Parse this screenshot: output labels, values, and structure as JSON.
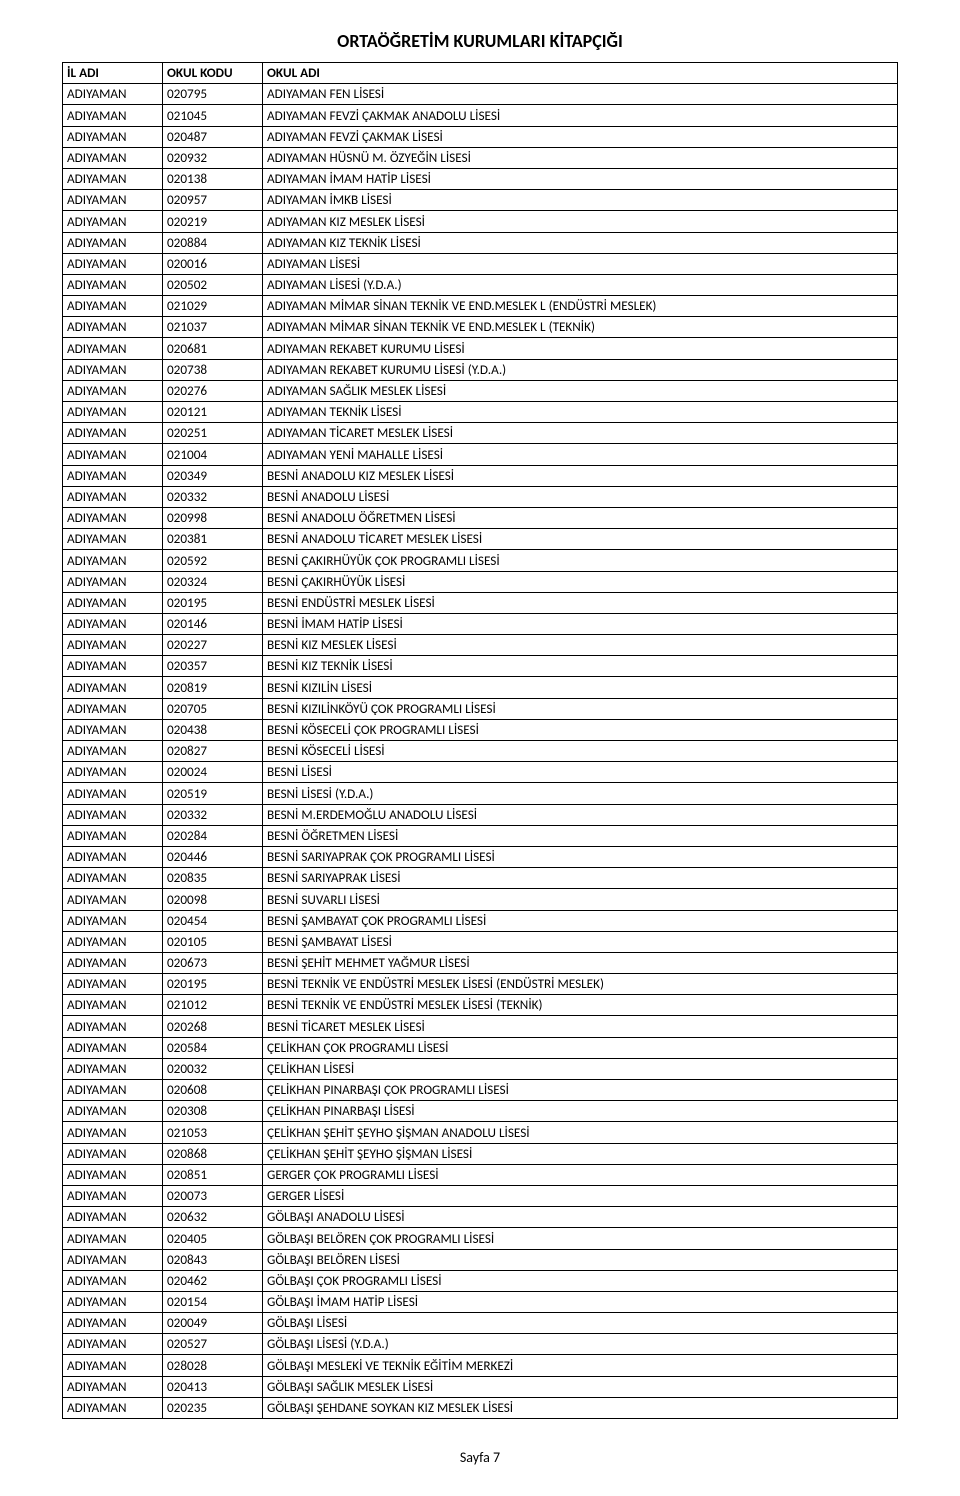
{
  "title": "ORTAÖĞRETİM KURUMLARI KİTAPÇIĞI",
  "headers": {
    "c1": "İL ADI",
    "c2": "OKUL KODU",
    "c3": "OKUL ADI"
  },
  "footer": "Sayfa 7",
  "rows": [
    [
      "ADIYAMAN",
      "020795",
      "ADIYAMAN FEN LİSESİ"
    ],
    [
      "ADIYAMAN",
      "021045",
      "ADIYAMAN FEVZİ ÇAKMAK ANADOLU LİSESİ"
    ],
    [
      "ADIYAMAN",
      "020487",
      "ADIYAMAN FEVZİ ÇAKMAK LİSESİ"
    ],
    [
      "ADIYAMAN",
      "020932",
      "ADIYAMAN HÜSNÜ M. ÖZYEĞİN LİSESİ"
    ],
    [
      "ADIYAMAN",
      "020138",
      "ADIYAMAN İMAM HATİP LİSESİ"
    ],
    [
      "ADIYAMAN",
      "020957",
      "ADIYAMAN İMKB LİSESİ"
    ],
    [
      "ADIYAMAN",
      "020219",
      "ADIYAMAN KIZ MESLEK LİSESİ"
    ],
    [
      "ADIYAMAN",
      "020884",
      "ADIYAMAN KIZ TEKNİK LİSESİ"
    ],
    [
      "ADIYAMAN",
      "020016",
      "ADIYAMAN LİSESİ"
    ],
    [
      "ADIYAMAN",
      "020502",
      "ADIYAMAN LİSESİ (Y.D.A.)"
    ],
    [
      "ADIYAMAN",
      "021029",
      "ADIYAMAN MİMAR SİNAN TEKNİK VE END.MESLEK L (ENDÜSTRİ MESLEK)"
    ],
    [
      "ADIYAMAN",
      "021037",
      "ADIYAMAN MİMAR SİNAN TEKNİK VE END.MESLEK L (TEKNİK)"
    ],
    [
      "ADIYAMAN",
      "020681",
      "ADIYAMAN REKABET KURUMU LİSESİ"
    ],
    [
      "ADIYAMAN",
      "020738",
      "ADIYAMAN REKABET KURUMU LİSESİ (Y.D.A.)"
    ],
    [
      "ADIYAMAN",
      "020276",
      "ADIYAMAN SAĞLIK MESLEK LİSESİ"
    ],
    [
      "ADIYAMAN",
      "020121",
      "ADIYAMAN TEKNİK LİSESİ"
    ],
    [
      "ADIYAMAN",
      "020251",
      "ADIYAMAN TİCARET MESLEK LİSESİ"
    ],
    [
      "ADIYAMAN",
      "021004",
      "ADIYAMAN YENİ MAHALLE LİSESİ"
    ],
    [
      "ADIYAMAN",
      "020349",
      "BESNİ ANADOLU KIZ MESLEK LİSESİ"
    ],
    [
      "ADIYAMAN",
      "020332",
      "BESNİ ANADOLU LİSESİ"
    ],
    [
      "ADIYAMAN",
      "020998",
      "BESNİ ANADOLU ÖĞRETMEN LİSESİ"
    ],
    [
      "ADIYAMAN",
      "020381",
      "BESNİ ANADOLU TİCARET MESLEK LİSESİ"
    ],
    [
      "ADIYAMAN",
      "020592",
      "BESNİ ÇAKIRHÜYÜK ÇOK PROGRAMLI LİSESİ"
    ],
    [
      "ADIYAMAN",
      "020324",
      "BESNİ ÇAKIRHÜYÜK LİSESİ"
    ],
    [
      "ADIYAMAN",
      "020195",
      "BESNİ ENDÜSTRİ MESLEK LİSESİ"
    ],
    [
      "ADIYAMAN",
      "020146",
      "BESNİ İMAM HATİP LİSESİ"
    ],
    [
      "ADIYAMAN",
      "020227",
      "BESNİ KIZ MESLEK LİSESİ"
    ],
    [
      "ADIYAMAN",
      "020357",
      "BESNİ KIZ TEKNİK LİSESİ"
    ],
    [
      "ADIYAMAN",
      "020819",
      "BESNİ KIZILİN LİSESİ"
    ],
    [
      "ADIYAMAN",
      "020705",
      "BESNİ KIZILİNKÖYÜ ÇOK PROGRAMLI LİSESİ"
    ],
    [
      "ADIYAMAN",
      "020438",
      "BESNİ KÖSECELİ ÇOK PROGRAMLI LİSESİ"
    ],
    [
      "ADIYAMAN",
      "020827",
      "BESNİ KÖSECELİ LİSESİ"
    ],
    [
      "ADIYAMAN",
      "020024",
      "BESNİ LİSESİ"
    ],
    [
      "ADIYAMAN",
      "020519",
      "BESNİ LİSESİ (Y.D.A.)"
    ],
    [
      "ADIYAMAN",
      "020332",
      "BESNİ M.ERDEMOĞLU ANADOLU LİSESİ"
    ],
    [
      "ADIYAMAN",
      "020284",
      "BESNİ ÖĞRETMEN LİSESİ"
    ],
    [
      "ADIYAMAN",
      "020446",
      "BESNİ SARIYAPRAK ÇOK PROGRAMLI LİSESİ"
    ],
    [
      "ADIYAMAN",
      "020835",
      "BESNİ SARIYAPRAK LİSESİ"
    ],
    [
      "ADIYAMAN",
      "020098",
      "BESNİ SUVARLI LİSESİ"
    ],
    [
      "ADIYAMAN",
      "020454",
      "BESNİ ŞAMBAYAT ÇOK PROGRAMLI LİSESİ"
    ],
    [
      "ADIYAMAN",
      "020105",
      "BESNİ ŞAMBAYAT LİSESİ"
    ],
    [
      "ADIYAMAN",
      "020673",
      "BESNİ ŞEHİT MEHMET YAĞMUR LİSESİ"
    ],
    [
      "ADIYAMAN",
      "020195",
      "BESNİ TEKNİK VE ENDÜSTRİ MESLEK LİSESİ (ENDÜSTRİ MESLEK)"
    ],
    [
      "ADIYAMAN",
      "021012",
      "BESNİ TEKNİK VE ENDÜSTRİ MESLEK LİSESİ (TEKNİK)"
    ],
    [
      "ADIYAMAN",
      "020268",
      "BESNİ TİCARET MESLEK LİSESİ"
    ],
    [
      "ADIYAMAN",
      "020584",
      "ÇELİKHAN ÇOK PROGRAMLI LİSESİ"
    ],
    [
      "ADIYAMAN",
      "020032",
      "ÇELİKHAN LİSESİ"
    ],
    [
      "ADIYAMAN",
      "020608",
      "ÇELİKHAN PINARBAŞI ÇOK PROGRAMLI LİSESİ"
    ],
    [
      "ADIYAMAN",
      "020308",
      "ÇELİKHAN PINARBAŞI LİSESİ"
    ],
    [
      "ADIYAMAN",
      "021053",
      "ÇELİKHAN ŞEHİT ŞEYHO ŞİŞMAN ANADOLU LİSESİ"
    ],
    [
      "ADIYAMAN",
      "020868",
      "ÇELİKHAN ŞEHİT ŞEYHO ŞİŞMAN LİSESİ"
    ],
    [
      "ADIYAMAN",
      "020851",
      "GERGER ÇOK PROGRAMLI LİSESİ"
    ],
    [
      "ADIYAMAN",
      "020073",
      "GERGER LİSESİ"
    ],
    [
      "ADIYAMAN",
      "020632",
      "GÖLBAŞI ANADOLU LİSESİ"
    ],
    [
      "ADIYAMAN",
      "020405",
      "GÖLBAŞI BELÖREN ÇOK PROGRAMLI LİSESİ"
    ],
    [
      "ADIYAMAN",
      "020843",
      "GÖLBAŞI BELÖREN LİSESİ"
    ],
    [
      "ADIYAMAN",
      "020462",
      "GÖLBAŞI ÇOK PROGRAMLI LİSESİ"
    ],
    [
      "ADIYAMAN",
      "020154",
      "GÖLBAŞI İMAM HATİP LİSESİ"
    ],
    [
      "ADIYAMAN",
      "020049",
      "GÖLBAŞI LİSESİ"
    ],
    [
      "ADIYAMAN",
      "020527",
      "GÖLBAŞI LİSESİ (Y.D.A.)"
    ],
    [
      "ADIYAMAN",
      "028028",
      "GÖLBAŞI MESLEKİ VE TEKNİK EĞİTİM MERKEZİ"
    ],
    [
      "ADIYAMAN",
      "020413",
      "GÖLBAŞI SAĞLIK MESLEK LİSESİ"
    ],
    [
      "ADIYAMAN",
      "020235",
      "GÖLBAŞI ŞEHDANE SOYKAN KIZ MESLEK LİSESİ"
    ]
  ]
}
